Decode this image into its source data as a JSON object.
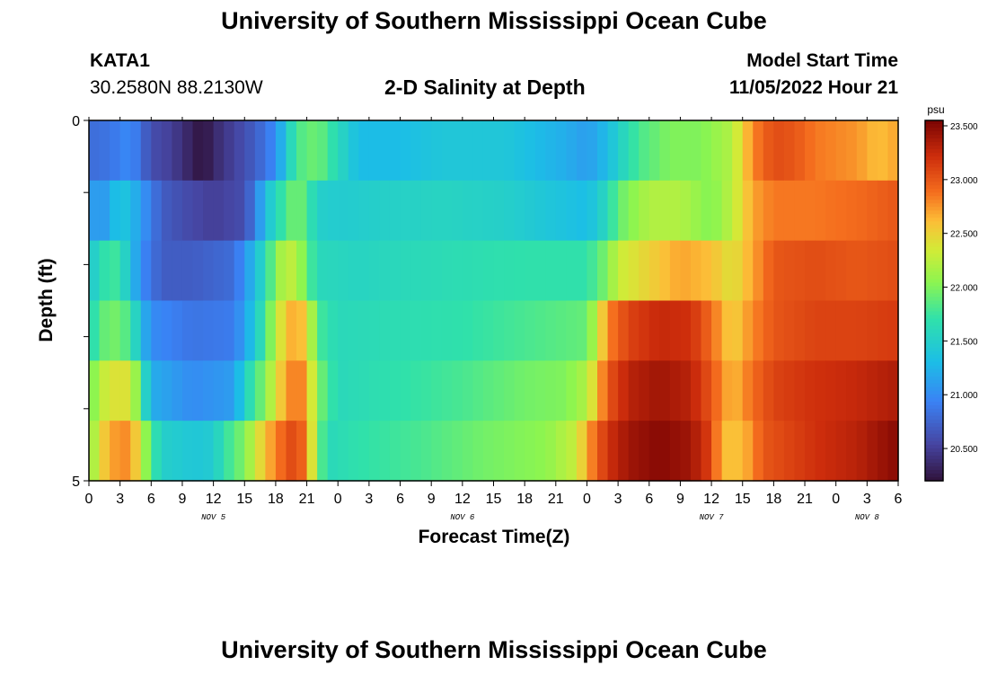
{
  "header": {
    "title": "University of Southern Mississippi Ocean Cube",
    "station": "KATA1",
    "coords": "30.2580N  88.2130W",
    "chart_title": "2-D Salinity at Depth",
    "model_start_label": "Model Start Time",
    "model_start_value": "11/05/2022 Hour 21"
  },
  "footer": {
    "title": "University of Southern Mississippi Ocean Cube"
  },
  "chart_data": {
    "type": "heatmap",
    "title": "2-D Salinity at Depth",
    "xlabel": "Forecast Time(Z)",
    "ylabel": "Depth (ft)",
    "x_tick_labels": [
      "0",
      "3",
      "6",
      "9",
      "12",
      "15",
      "18",
      "21",
      "0",
      "3",
      "6",
      "9",
      "12",
      "15",
      "18",
      "21",
      "0",
      "3",
      "6",
      "9",
      "12",
      "15",
      "18",
      "21",
      "0",
      "3",
      "6"
    ],
    "date_labels": [
      {
        "label": "NOV 5",
        "hour": 12
      },
      {
        "label": "NOV 6",
        "hour": 36
      },
      {
        "label": "NOV 7",
        "hour": 60
      },
      {
        "label": "NOV 8",
        "hour": 75
      }
    ],
    "x_range_hours": [
      0,
      78
    ],
    "y_tick_labels": [
      "0",
      "5"
    ],
    "ylim": [
      0,
      5
    ],
    "depth_rows": 6,
    "time_columns": 78,
    "colorbar": {
      "unit": "psu",
      "min": 20.2,
      "max": 23.55,
      "tick_labels": [
        "23.500",
        "23.000",
        "22.500",
        "22.000",
        "21.500",
        "21.000",
        "20.500"
      ],
      "tick_values": [
        23.5,
        23.0,
        22.5,
        22.0,
        21.5,
        21.0,
        20.5
      ]
    },
    "salinity_profiles": [
      [
        [
          0,
          20.8
        ],
        [
          2,
          20.85
        ],
        [
          4,
          21.0
        ],
        [
          6,
          20.6
        ],
        [
          8,
          20.5
        ],
        [
          10,
          20.3
        ],
        [
          11,
          20.2
        ],
        [
          12,
          20.35
        ],
        [
          16,
          20.7
        ],
        [
          18,
          21.0
        ],
        [
          19,
          21.4
        ],
        [
          20,
          21.8
        ],
        [
          22,
          21.95
        ],
        [
          24,
          21.6
        ],
        [
          26,
          21.3
        ],
        [
          30,
          21.3
        ],
        [
          34,
          21.4
        ],
        [
          40,
          21.4
        ],
        [
          46,
          21.2
        ],
        [
          48,
          21.1
        ],
        [
          50,
          21.3
        ],
        [
          51,
          21.5
        ],
        [
          53,
          21.8
        ],
        [
          56,
          22.0
        ],
        [
          59,
          22.0
        ],
        [
          62,
          22.2
        ],
        [
          64,
          22.8
        ],
        [
          66,
          23.05
        ],
        [
          68,
          23.0
        ],
        [
          70,
          22.85
        ],
        [
          74,
          22.75
        ],
        [
          76,
          22.6
        ],
        [
          78,
          22.7
        ]
      ],
      [
        [
          0,
          21.2
        ],
        [
          1,
          21.0
        ],
        [
          2,
          21.2
        ],
        [
          3,
          21.4
        ],
        [
          4,
          21.3
        ],
        [
          5,
          21.1
        ],
        [
          7,
          20.7
        ],
        [
          9,
          20.6
        ],
        [
          12,
          20.5
        ],
        [
          15,
          20.6
        ],
        [
          16,
          20.9
        ],
        [
          17,
          21.3
        ],
        [
          18,
          21.6
        ],
        [
          19,
          21.8
        ],
        [
          20,
          22.0
        ],
        [
          21,
          21.8
        ],
        [
          22,
          21.5
        ],
        [
          24,
          21.45
        ],
        [
          28,
          21.5
        ],
        [
          34,
          21.55
        ],
        [
          40,
          21.5
        ],
        [
          48,
          21.3
        ],
        [
          50,
          21.6
        ],
        [
          51,
          21.9
        ],
        [
          54,
          22.2
        ],
        [
          57,
          22.2
        ],
        [
          60,
          22.0
        ],
        [
          62,
          22.25
        ],
        [
          64,
          22.7
        ],
        [
          66,
          22.85
        ],
        [
          70,
          22.85
        ],
        [
          74,
          22.9
        ],
        [
          78,
          23.0
        ]
      ],
      [
        [
          0,
          21.4
        ],
        [
          2,
          21.8
        ],
        [
          3,
          21.7
        ],
        [
          5,
          21.0
        ],
        [
          7,
          20.7
        ],
        [
          10,
          20.7
        ],
        [
          14,
          20.8
        ],
        [
          16,
          21.3
        ],
        [
          18,
          22.0
        ],
        [
          19,
          22.3
        ],
        [
          20,
          22.2
        ],
        [
          21,
          21.9
        ],
        [
          22,
          21.6
        ],
        [
          26,
          21.55
        ],
        [
          30,
          21.6
        ],
        [
          36,
          21.65
        ],
        [
          42,
          21.7
        ],
        [
          48,
          21.7
        ],
        [
          50,
          22.0
        ],
        [
          51,
          22.3
        ],
        [
          54,
          22.5
        ],
        [
          57,
          22.7
        ],
        [
          60,
          22.6
        ],
        [
          62,
          22.4
        ],
        [
          64,
          22.7
        ],
        [
          66,
          23.0
        ],
        [
          70,
          23.05
        ],
        [
          74,
          23.0
        ],
        [
          78,
          23.05
        ]
      ],
      [
        [
          0,
          21.6
        ],
        [
          1,
          21.8
        ],
        [
          2,
          22.0
        ],
        [
          4,
          21.8
        ],
        [
          5,
          21.3
        ],
        [
          6,
          21.0
        ],
        [
          10,
          20.85
        ],
        [
          14,
          20.9
        ],
        [
          16,
          21.4
        ],
        [
          17,
          21.8
        ],
        [
          18,
          22.2
        ],
        [
          19,
          22.6
        ],
        [
          20,
          22.7
        ],
        [
          21,
          22.5
        ],
        [
          22,
          21.8
        ],
        [
          24,
          21.6
        ],
        [
          30,
          21.65
        ],
        [
          36,
          21.7
        ],
        [
          42,
          21.8
        ],
        [
          48,
          21.9
        ],
        [
          49,
          22.3
        ],
        [
          50,
          22.8
        ],
        [
          52,
          23.1
        ],
        [
          55,
          23.25
        ],
        [
          58,
          23.2
        ],
        [
          60,
          22.9
        ],
        [
          62,
          22.5
        ],
        [
          64,
          22.8
        ],
        [
          66,
          23.0
        ],
        [
          70,
          23.1
        ],
        [
          74,
          23.1
        ],
        [
          78,
          23.15
        ]
      ],
      [
        [
          0,
          21.9
        ],
        [
          1,
          22.2
        ],
        [
          2,
          22.4
        ],
        [
          4,
          22.4
        ],
        [
          5,
          21.8
        ],
        [
          6,
          21.2
        ],
        [
          10,
          21.0
        ],
        [
          14,
          21.1
        ],
        [
          15,
          21.5
        ],
        [
          16,
          21.8
        ],
        [
          17,
          22.0
        ],
        [
          18,
          22.4
        ],
        [
          19,
          22.7
        ],
        [
          20,
          22.9
        ],
        [
          21,
          22.7
        ],
        [
          22,
          22.0
        ],
        [
          24,
          21.6
        ],
        [
          30,
          21.7
        ],
        [
          36,
          21.8
        ],
        [
          42,
          21.95
        ],
        [
          46,
          22.0
        ],
        [
          48,
          22.2
        ],
        [
          49,
          22.6
        ],
        [
          50,
          23.0
        ],
        [
          52,
          23.3
        ],
        [
          55,
          23.4
        ],
        [
          58,
          23.3
        ],
        [
          60,
          23.0
        ],
        [
          62,
          22.6
        ],
        [
          64,
          22.9
        ],
        [
          66,
          23.1
        ],
        [
          70,
          23.2
        ],
        [
          74,
          23.25
        ],
        [
          78,
          23.35
        ]
      ],
      [
        [
          0,
          22.0
        ],
        [
          1,
          22.4
        ],
        [
          2,
          22.7
        ],
        [
          4,
          22.8
        ],
        [
          5,
          22.3
        ],
        [
          6,
          21.8
        ],
        [
          7,
          21.5
        ],
        [
          10,
          21.4
        ],
        [
          12,
          21.45
        ],
        [
          13,
          21.7
        ],
        [
          15,
          22.0
        ],
        [
          16,
          22.3
        ],
        [
          17,
          22.6
        ],
        [
          18,
          22.8
        ],
        [
          19,
          23.0
        ],
        [
          20,
          23.1
        ],
        [
          21,
          22.8
        ],
        [
          22,
          22.0
        ],
        [
          23,
          21.6
        ],
        [
          26,
          21.7
        ],
        [
          32,
          21.8
        ],
        [
          38,
          21.95
        ],
        [
          44,
          22.05
        ],
        [
          47,
          22.3
        ],
        [
          48,
          22.7
        ],
        [
          50,
          23.2
        ],
        [
          52,
          23.4
        ],
        [
          55,
          23.5
        ],
        [
          58,
          23.4
        ],
        [
          60,
          23.1
        ],
        [
          61,
          22.6
        ],
        [
          63,
          22.6
        ],
        [
          65,
          23.0
        ],
        [
          70,
          23.2
        ],
        [
          74,
          23.3
        ],
        [
          77,
          23.45
        ],
        [
          78,
          23.5
        ]
      ]
    ]
  }
}
